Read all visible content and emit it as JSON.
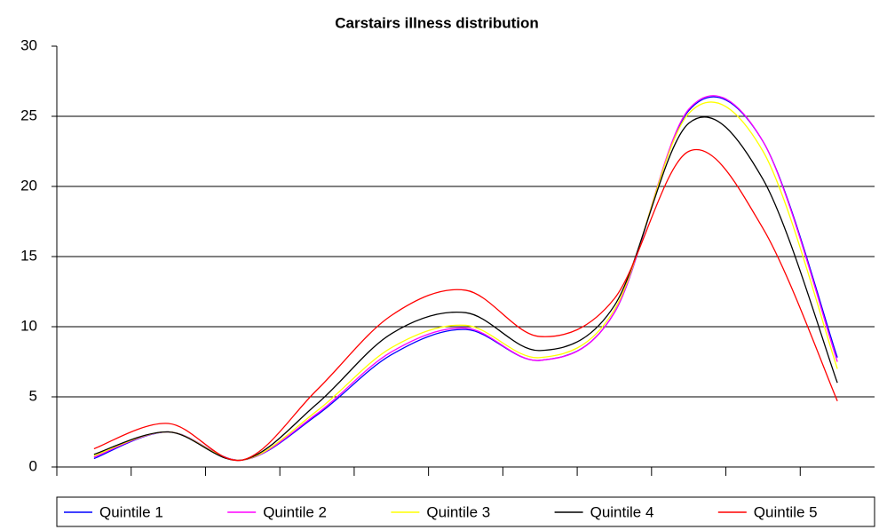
{
  "chart_data": {
    "type": "line",
    "title": "Carstairs illness distribution",
    "categories": [
      null,
      null,
      null,
      null,
      null,
      null,
      null,
      null,
      null,
      null,
      null
    ],
    "series": [
      {
        "name": "Quintile 1",
        "color": "#0000ff",
        "values": [
          0.6,
          2.5,
          0.5,
          3.7,
          8.0,
          9.8,
          7.6,
          11.0,
          25.4,
          23.2,
          7.8
        ]
      },
      {
        "name": "Quintile 2",
        "color": "#ff00ff",
        "values": [
          0.7,
          2.5,
          0.5,
          3.8,
          8.2,
          9.9,
          7.6,
          11.0,
          25.5,
          23.2,
          7.5
        ]
      },
      {
        "name": "Quintile 3",
        "color": "#ffff00",
        "values": [
          0.8,
          2.5,
          0.5,
          4.0,
          8.5,
          10.1,
          7.8,
          11.2,
          25.2,
          22.5,
          7.0
        ]
      },
      {
        "name": "Quintile 4",
        "color": "#000000",
        "values": [
          0.9,
          2.5,
          0.5,
          4.5,
          9.5,
          11.0,
          8.3,
          11.5,
          24.5,
          20.5,
          6.0
        ]
      },
      {
        "name": "Quintile 5",
        "color": "#ff0000",
        "values": [
          1.3,
          3.1,
          0.5,
          5.5,
          10.8,
          12.6,
          9.3,
          12.0,
          22.5,
          17.0,
          4.7
        ]
      }
    ],
    "ylim": [
      0,
      30
    ],
    "yticks": [
      0,
      5,
      10,
      15,
      20,
      25,
      30
    ],
    "grid": true,
    "legend": "bottom"
  }
}
